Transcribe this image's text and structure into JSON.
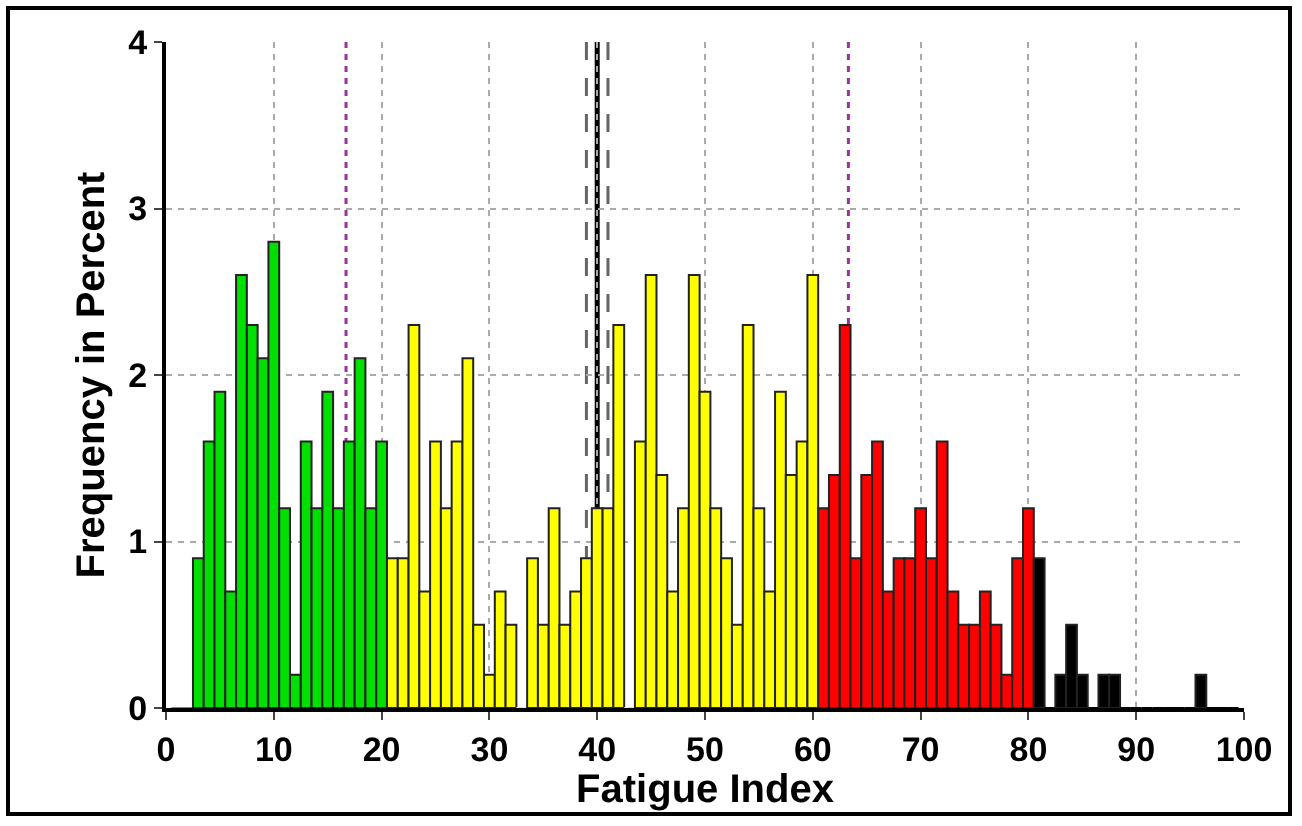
{
  "chart_data": {
    "type": "histogram",
    "xlabel": "Fatigue Index",
    "ylabel": "Frequency in Percent",
    "bins": [
      0.5,
      1.5,
      2.5,
      3.5,
      4.5,
      5.5,
      6.5,
      7.5,
      8.5,
      9.5,
      10.5,
      11.5,
      12.5,
      13.5,
      14.5,
      15.5,
      16.5,
      17.5,
      18.5,
      19.5,
      20.5,
      21.5,
      22.5,
      23.5,
      24.5,
      25.5,
      26.5,
      27.5,
      28.5,
      29.5,
      30.5,
      31.5,
      32.5,
      33.5,
      34.5,
      35.5,
      36.5,
      37.5,
      38.5,
      39.5,
      40.5,
      41.5,
      42.5,
      43.5,
      44.5,
      45.5,
      46.5,
      47.5,
      48.5,
      49.5,
      50.5,
      51.5,
      52.5,
      53.5,
      54.5,
      55.5,
      56.5,
      57.5,
      58.5,
      59.5,
      60.5,
      61.5,
      62.5,
      63.5,
      64.5,
      65.5,
      66.5,
      67.5,
      68.5,
      69.5,
      70.5,
      71.5,
      72.5,
      73.5,
      74.5,
      75.5,
      76.5,
      77.5,
      78.5,
      79.5,
      80.5,
      81.5,
      82.5,
      83.5,
      84.5,
      85.5,
      86.5,
      87.5,
      88.5,
      89.5,
      90.5,
      91.5,
      92.5,
      93.5,
      94.5,
      95.5,
      96.5,
      97.5,
      98.5,
      99.5
    ],
    "values": [
      0,
      0,
      0.9,
      1.6,
      1.9,
      0.7,
      2.6,
      2.3,
      2.1,
      2.8,
      1.2,
      0.2,
      1.6,
      1.2,
      1.9,
      1.2,
      1.6,
      2.1,
      1.2,
      1.6,
      0.9,
      0.9,
      2.3,
      0.7,
      1.6,
      1.2,
      1.6,
      2.1,
      0.5,
      0.2,
      0.7,
      0.5,
      0,
      0.9,
      0.5,
      1.2,
      0.5,
      0.7,
      0.9,
      1.2,
      1.2,
      2.3,
      0,
      1.6,
      2.6,
      1.4,
      0.7,
      1.2,
      2.6,
      1.9,
      1.2,
      0.9,
      0.5,
      2.3,
      1.2,
      0.7,
      1.9,
      1.4,
      1.6,
      2.6,
      1.2,
      1.4,
      2.3,
      0.9,
      1.4,
      1.6,
      0.7,
      0.9,
      0.9,
      1.2,
      0.9,
      1.6,
      0.7,
      0.5,
      0.5,
      0.7,
      0.5,
      0.2,
      0.9,
      1.2,
      0.9,
      0,
      0.2,
      0.5,
      0.2,
      0,
      0.2,
      0.2,
      0,
      0,
      0,
      0,
      0,
      0,
      0,
      0.2,
      0,
      0,
      0
    ],
    "colors": [
      "#00e000",
      "#00e000",
      "#00e000",
      "#00e000",
      "#00e000",
      "#00e000",
      "#00e000",
      "#00e000",
      "#00e000",
      "#00e000",
      "#00e000",
      "#00e000",
      "#00e000",
      "#00e000",
      "#00e000",
      "#00e000",
      "#00e000",
      "#00e000",
      "#00e000",
      "#00e000",
      "#ffff00",
      "#ffff00",
      "#ffff00",
      "#ffff00",
      "#ffff00",
      "#ffff00",
      "#ffff00",
      "#ffff00",
      "#ffff00",
      "#ffff00",
      "#ffff00",
      "#ffff00",
      "#ffff00",
      "#ffff00",
      "#ffff00",
      "#ffff00",
      "#ffff00",
      "#ffff00",
      "#ffff00",
      "#ffff00",
      "#ffff00",
      "#ffff00",
      "#ffff00",
      "#ffff00",
      "#ffff00",
      "#ffff00",
      "#ffff00",
      "#ffff00",
      "#ffff00",
      "#ffff00",
      "#ffff00",
      "#ffff00",
      "#ffff00",
      "#ffff00",
      "#ffff00",
      "#ffff00",
      "#ffff00",
      "#ffff00",
      "#ffff00",
      "#ffff00",
      "#ff0000",
      "#ff0000",
      "#ff0000",
      "#ff0000",
      "#ff0000",
      "#ff0000",
      "#ff0000",
      "#ff0000",
      "#ff0000",
      "#ff0000",
      "#ff0000",
      "#ff0000",
      "#ff0000",
      "#ff0000",
      "#ff0000",
      "#ff0000",
      "#ff0000",
      "#ff0000",
      "#ff0000",
      "#ff0000",
      "#000000",
      "#000000",
      "#000000",
      "#000000",
      "#000000",
      "#000000",
      "#000000",
      "#000000",
      "#000000",
      "#000000",
      "#000000",
      "#000000",
      "#000000",
      "#000000",
      "#000000",
      "#000000",
      "#000000",
      "#000000",
      "#000000"
    ],
    "xlim": [
      0,
      100
    ],
    "xticks": [
      0,
      10,
      20,
      30,
      40,
      50,
      60,
      70,
      80,
      90,
      100
    ],
    "ylim": [
      0,
      4
    ],
    "yticks": [
      0,
      1,
      2,
      3,
      4
    ],
    "ref_lines": [
      {
        "axis": "x",
        "value": 16.7,
        "color": "#993399",
        "line_style": "dotted"
      },
      {
        "axis": "x",
        "value": 39,
        "color": "#666666",
        "line_style": "dashed"
      },
      {
        "axis": "x",
        "value": 40,
        "color": "#000000",
        "line_style": "solid"
      },
      {
        "axis": "x",
        "value": 41,
        "color": "#666666",
        "line_style": "dashed"
      },
      {
        "axis": "x",
        "value": 63.3,
        "color": "#993399",
        "line_style": "dotted"
      }
    ],
    "grid": true
  }
}
